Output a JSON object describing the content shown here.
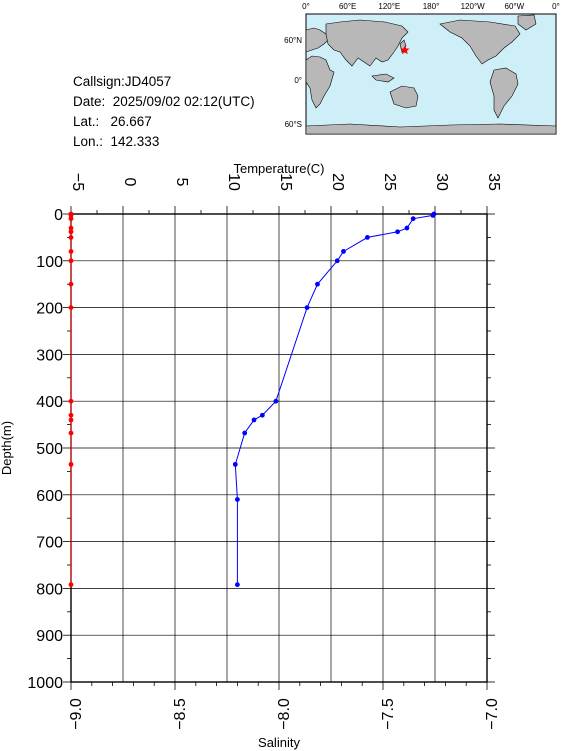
{
  "header": {
    "callsign": "Callsign:JD4057",
    "date": "Date:  2025/09/02 02:12(UTC)",
    "lat": "Lat.:   26.667",
    "lon": "Lon.:  142.333"
  },
  "map": {
    "top_labels": [
      "0°",
      "60°E",
      "120°E",
      "180°",
      "120°W",
      "60°W",
      "0°"
    ],
    "side_labels": [
      "60°N",
      "0°",
      "60°S"
    ],
    "ocean_color": "#cfeff8",
    "land_color": "#b8b8b8",
    "marker_color": "#ff0000",
    "marker": "red-star",
    "station": {
      "lon": 142.333,
      "lat": 26.667
    }
  },
  "chart_data": {
    "type": "line",
    "ylabel": "Depth(m)",
    "ylim": [
      1000,
      0
    ],
    "yticks": [
      "0",
      "100",
      "200",
      "300",
      "400",
      "500",
      "600",
      "700",
      "800",
      "900",
      "1000"
    ],
    "grid": true,
    "top_axis": {
      "label": "Temperature(C)",
      "range": [
        -5,
        35
      ],
      "ticks": [
        "-5",
        "0",
        "5",
        "10",
        "15",
        "20",
        "25",
        "30",
        "35"
      ]
    },
    "bottom_axis": {
      "label": "Salinity",
      "range": [
        -9.0,
        -7.0
      ],
      "ticks": [
        "-9.0",
        "-8.5",
        "-8.0",
        "-7.5",
        "-7.0"
      ]
    },
    "series": [
      {
        "axis": "temperature",
        "color": "#0000ff",
        "points": [
          [
            29.9,
            0
          ],
          [
            29.8,
            3
          ],
          [
            27.9,
            10
          ],
          [
            27.3,
            30
          ],
          [
            26.4,
            38
          ],
          [
            23.5,
            50
          ],
          [
            21.2,
            80
          ],
          [
            20.6,
            100
          ],
          [
            18.7,
            150
          ],
          [
            17.7,
            200
          ],
          [
            14.7,
            400
          ],
          [
            13.4,
            430
          ],
          [
            12.6,
            440
          ],
          [
            11.7,
            468
          ],
          [
            10.8,
            535
          ],
          [
            11.0,
            610
          ],
          [
            11.0,
            792
          ]
        ]
      },
      {
        "axis": "salinity",
        "color": "#ff0000",
        "points": [
          [
            -9.0,
            0
          ],
          [
            -9.0,
            3
          ],
          [
            -9.0,
            10
          ],
          [
            -9.0,
            30
          ],
          [
            -9.0,
            38
          ],
          [
            -9.0,
            50
          ],
          [
            -9.0,
            80
          ],
          [
            -9.0,
            100
          ],
          [
            -9.0,
            150
          ],
          [
            -9.0,
            200
          ],
          [
            -9.0,
            400
          ],
          [
            -9.0,
            430
          ],
          [
            -9.0,
            440
          ],
          [
            -9.0,
            468
          ],
          [
            -9.0,
            535
          ],
          [
            -9.0,
            792
          ]
        ]
      }
    ]
  }
}
